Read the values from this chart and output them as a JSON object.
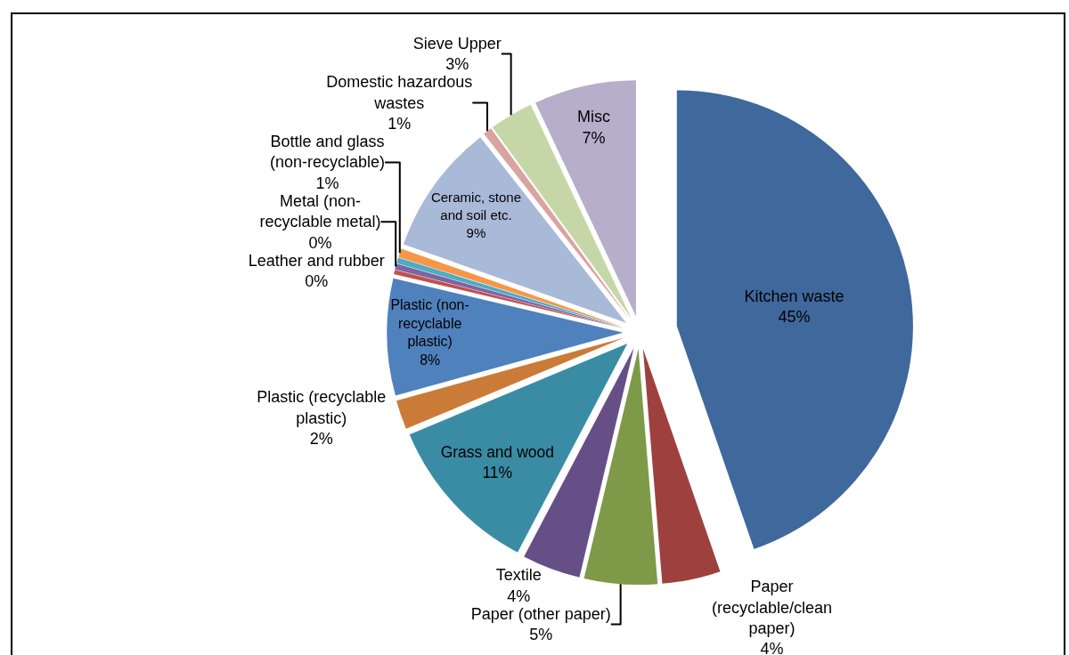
{
  "chart_data": {
    "type": "pie",
    "categories": [
      "Kitchen waste",
      "Paper (recyclable/clean paper)",
      "Paper (other paper)",
      "Textile",
      "Grass and wood",
      "Plastic (recyclable plastic)",
      "Plastic (non-recyclable plastic)",
      "Leather and rubber",
      "Metal (non-recyclable metal)",
      null,
      "Bottle and glass (non-recyclable)",
      "Ceramic, stone and soil etc.",
      "Domestic hazardous wastes",
      "Sieve Upper",
      "Misc"
    ],
    "values": [
      44.7,
      4,
      5,
      4,
      11,
      2,
      8,
      0.3,
      0.4,
      0.4,
      0.6,
      9,
      0.6,
      3,
      7
    ],
    "value_labels": [
      "45%",
      "4%",
      "5%",
      "4%",
      "11%",
      "2%",
      "8%",
      "0%",
      "0%",
      null,
      "1%",
      "9%",
      "1%",
      "3%",
      "7%"
    ],
    "colors": [
      "#3f689c",
      "#9e413e",
      "#7e9a48",
      "#664f87",
      "#3a8ca4",
      "#cb7b38",
      "#4f81bd",
      "#c0504d",
      "#8064a2",
      "#4bacc6",
      "#f79646",
      "#a9b9d8",
      "#d9a3a2",
      "#c5d7a6",
      "#b7aecc"
    ],
    "legend": false
  }
}
